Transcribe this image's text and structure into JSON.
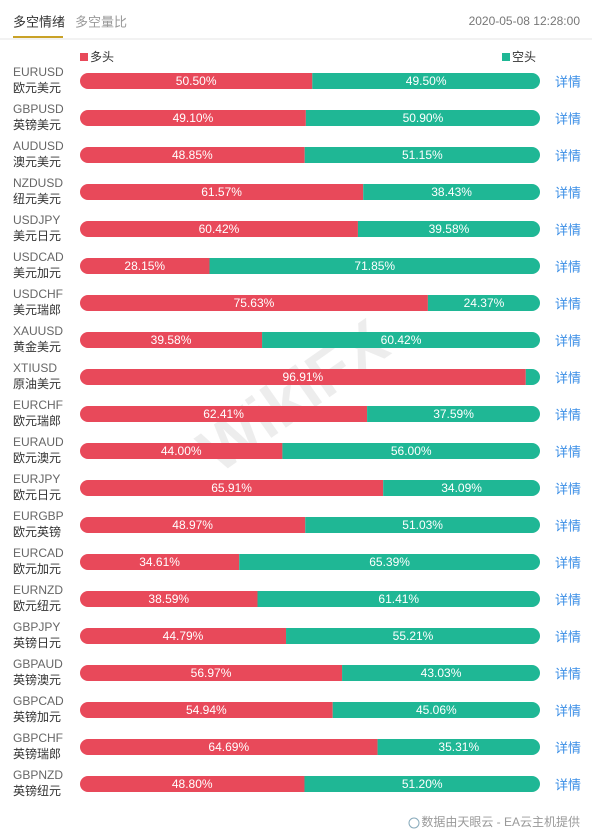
{
  "chart_data": {
    "type": "bar",
    "orientation": "horizontal",
    "stacked": true,
    "tabs": [
      "多空情绪",
      "多空量比"
    ],
    "timestamp": "2020-05-08 12:28:00",
    "categories": [
      "EURUSD",
      "GBPUSD",
      "AUDUSD",
      "NZDUSD",
      "USDJPY",
      "USDCAD",
      "USDCHF",
      "XAUUSD",
      "XTIUSD",
      "EURCHF",
      "EURAUD",
      "EURJPY",
      "EURGBP",
      "EURCAD",
      "EURNZD",
      "GBPJPY",
      "GBPAUD",
      "GBPCAD",
      "GBPCHF",
      "GBPNZD"
    ],
    "category_names": [
      "欧元美元",
      "英镑美元",
      "澳元美元",
      "纽元美元",
      "美元日元",
      "美元加元",
      "美元瑞郎",
      "黄金美元",
      "原油美元",
      "欧元瑞郎",
      "欧元澳元",
      "欧元日元",
      "欧元英镑",
      "欧元加元",
      "欧元纽元",
      "英镑日元",
      "英镑澳元",
      "英镑加元",
      "英镑瑞郎",
      "英镑纽元"
    ],
    "series": [
      {
        "name": "多头",
        "color": "#e8495a",
        "values": [
          50.5,
          49.1,
          48.85,
          61.57,
          60.42,
          28.15,
          75.63,
          39.58,
          96.91,
          62.41,
          44.0,
          65.91,
          48.97,
          34.61,
          38.59,
          44.79,
          56.97,
          54.94,
          64.69,
          48.8
        ],
        "value_labels": [
          "50.50%",
          "49.10%",
          "48.85%",
          "61.57%",
          "60.42%",
          "28.15%",
          "75.63%",
          "39.58%",
          "96.91%",
          "62.41%",
          "44.00%",
          "65.91%",
          "48.97%",
          "34.61%",
          "38.59%",
          "44.79%",
          "56.97%",
          "54.94%",
          "64.69%",
          "48.80%"
        ]
      },
      {
        "name": "空头",
        "color": "#1fb795",
        "values": [
          49.5,
          50.9,
          51.15,
          38.43,
          39.58,
          71.85,
          24.37,
          60.42,
          3.09,
          37.59,
          56.0,
          34.09,
          51.03,
          65.39,
          61.41,
          55.21,
          43.03,
          45.06,
          35.31,
          51.2
        ],
        "value_labels": [
          "49.50%",
          "50.90%",
          "51.15%",
          "38.43%",
          "39.58%",
          "71.85%",
          "24.37%",
          "60.42%",
          null,
          "37.59%",
          "56.00%",
          "34.09%",
          "51.03%",
          "65.39%",
          "61.41%",
          "55.21%",
          "43.03%",
          "45.06%",
          "35.31%",
          "51.20%"
        ]
      }
    ],
    "detail_link": "详情",
    "watermark": "WikiFX",
    "footer": "数据由天眼云 - EA云主机提供"
  }
}
